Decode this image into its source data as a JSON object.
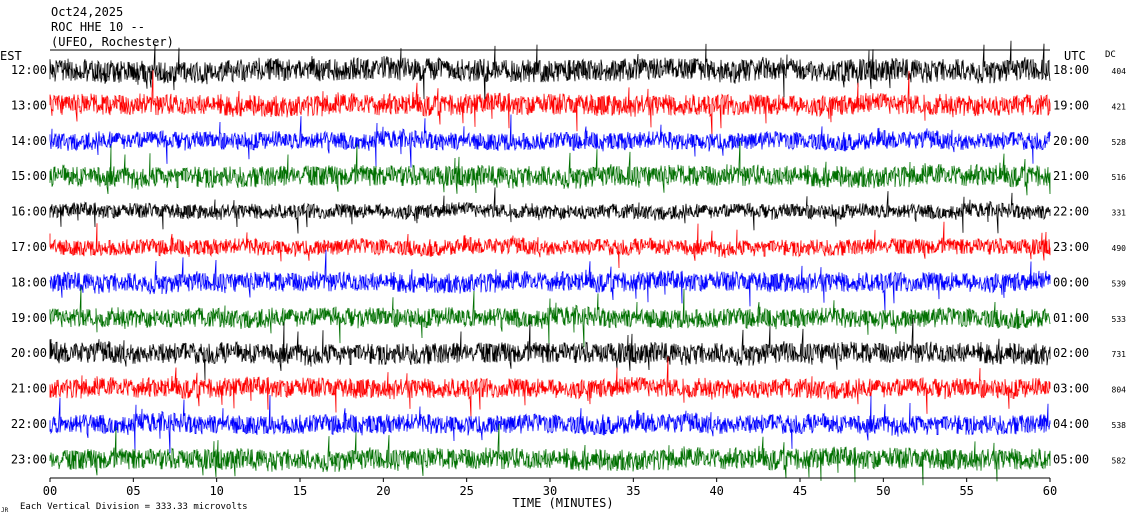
{
  "header": {
    "date": "Oct24,2025",
    "station": "ROC HHE 10 --",
    "network": "(UFEO, Rochester)"
  },
  "axes": {
    "left_label": "EST",
    "right_label": "UTC",
    "dc_label": "DC",
    "xlabel": "TIME (MINUTES)",
    "scale_note": "Each Vertical Division =  333.33 microvolts",
    "corner_mark": "JR"
  },
  "colors": {
    "trace_cycle": [
      "#000000",
      "#ff0000",
      "#0000ff",
      "#007000"
    ],
    "background": "#ffffff",
    "text": "#000000"
  },
  "chart_data": {
    "type": "line",
    "title": "",
    "xlabel": "TIME (MINUTES)",
    "ylabel": "",
    "xlim": [
      0,
      60
    ],
    "x_ticks": [
      "00",
      "05",
      "10",
      "15",
      "20",
      "25",
      "30",
      "35",
      "40",
      "45",
      "50",
      "55",
      "60"
    ],
    "rows": [
      {
        "est": "12:00",
        "utc": "18:00",
        "dc": "404"
      },
      {
        "est": "13:00",
        "utc": "19:00",
        "dc": "421"
      },
      {
        "est": "14:00",
        "utc": "20:00",
        "dc": "528"
      },
      {
        "est": "15:00",
        "utc": "21:00",
        "dc": "516"
      },
      {
        "est": "16:00",
        "utc": "22:00",
        "dc": "331"
      },
      {
        "est": "17:00",
        "utc": "23:00",
        "dc": "490"
      },
      {
        "est": "18:00",
        "utc": "00:00",
        "dc": "539"
      },
      {
        "est": "19:00",
        "utc": "01:00",
        "dc": "533"
      },
      {
        "est": "20:00",
        "utc": "02:00",
        "dc": "731"
      },
      {
        "est": "21:00",
        "utc": "03:00",
        "dc": "804"
      },
      {
        "est": "22:00",
        "utc": "04:00",
        "dc": "538"
      },
      {
        "est": "23:00",
        "utc": "05:00",
        "dc": "582"
      }
    ],
    "vertical_division_microvolts": 333.33,
    "grid": false
  }
}
